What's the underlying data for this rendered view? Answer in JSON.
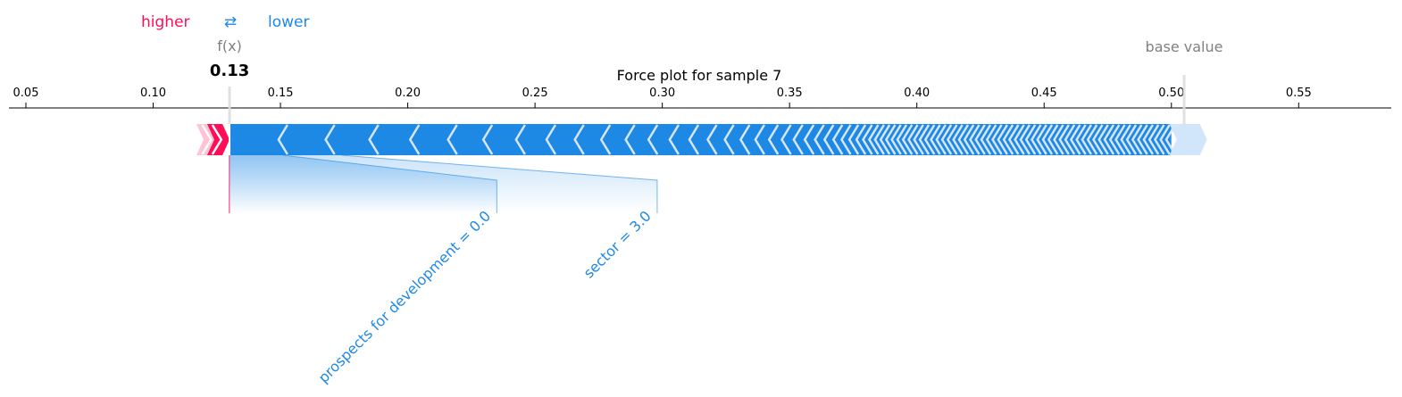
{
  "chart_data": {
    "type": "force",
    "title": "Force plot for sample 7",
    "legend": {
      "higher": "higher",
      "lower": "lower",
      "arrow_glyph": "⇄"
    },
    "fx_label": "f(x)",
    "fx_value_label": "0.13",
    "fx_value": 0.13,
    "base_value_label": "base value",
    "base_value": 0.505,
    "xlim": [
      0.045,
      0.59
    ],
    "xticks": [
      0.05,
      0.1,
      0.15,
      0.2,
      0.25,
      0.3,
      0.35,
      0.4,
      0.45,
      0.5,
      0.55
    ],
    "xtick_labels": [
      "0.05",
      "0.10",
      "0.15",
      "0.20",
      "0.25",
      "0.30",
      "0.35",
      "0.40",
      "0.45",
      "0.50",
      "0.55"
    ],
    "positive_range": [
      0.117,
      0.13
    ],
    "negative_range": [
      0.13,
      0.514
    ],
    "labeled_features": [
      {
        "label": "prospects for development = 0.0",
        "from": 0.13,
        "to": 0.151,
        "text_anchor_value": 0.235
      },
      {
        "label": "sector = 3.0",
        "from": 0.151,
        "to": 0.174,
        "text_anchor_value": 0.298
      }
    ],
    "colors": {
      "higher": "#ff0d57",
      "lower": "#1e88e5",
      "higher_light": "#ffc3d5",
      "lower_light": "#d1e6fa",
      "gray": "#808080",
      "axis": "#000000"
    }
  }
}
